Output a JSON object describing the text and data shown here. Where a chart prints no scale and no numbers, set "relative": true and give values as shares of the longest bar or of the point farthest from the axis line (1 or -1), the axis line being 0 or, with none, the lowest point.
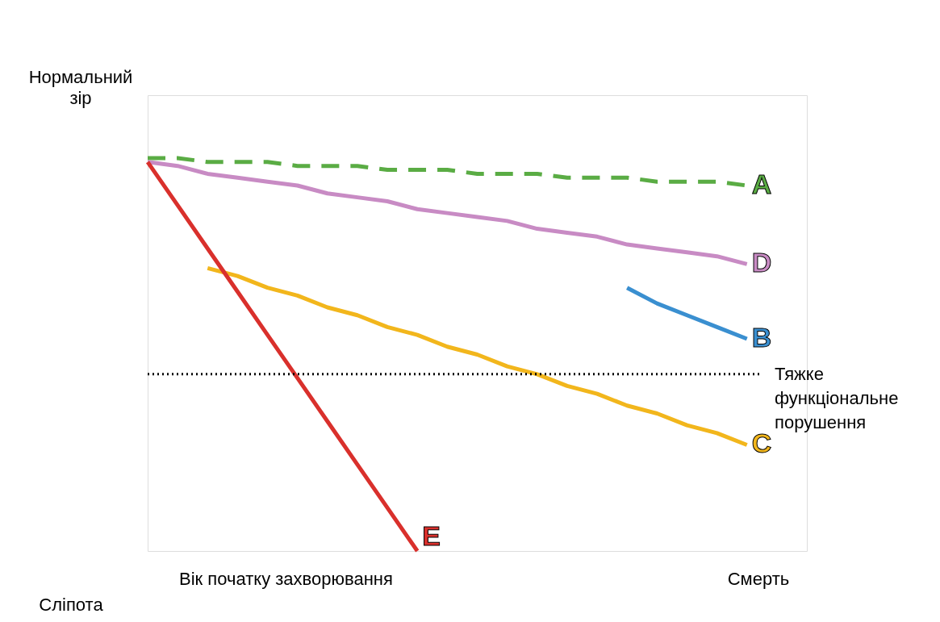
{
  "chart_data": {
    "type": "line",
    "relative": true,
    "grid": false,
    "marker": "none",
    "categories": [
      null,
      null,
      null,
      null,
      null,
      null,
      null,
      null,
      null,
      null,
      null,
      null,
      null,
      null,
      null,
      null,
      null,
      null,
      null,
      null,
      null
    ],
    "series": [
      {
        "name": "A",
        "color": "#5aac44",
        "line_style": "dashed",
        "values": [
          1.0,
          1.0,
          0.99,
          0.99,
          0.99,
          0.98,
          0.98,
          0.98,
          0.97,
          0.97,
          0.97,
          0.96,
          0.96,
          0.96,
          0.95,
          0.95,
          0.95,
          0.94,
          0.94,
          0.94,
          0.93
        ]
      },
      {
        "name": "D",
        "color": "#c88bc4",
        "values": [
          0.99,
          0.98,
          0.96,
          0.95,
          0.94,
          0.93,
          0.91,
          0.9,
          0.89,
          0.87,
          0.86,
          0.85,
          0.84,
          0.82,
          0.81,
          0.8,
          0.78,
          0.77,
          0.76,
          0.75,
          0.73
        ]
      },
      {
        "name": "B",
        "color": "#3a8fd0",
        "values": [
          null,
          null,
          null,
          null,
          null,
          null,
          null,
          null,
          null,
          null,
          null,
          null,
          null,
          null,
          null,
          null,
          0.67,
          0.63,
          0.6,
          0.57,
          0.54
        ]
      },
      {
        "name": "C",
        "color": "#f2b61c",
        "values": [
          null,
          null,
          0.72,
          0.7,
          0.67,
          0.65,
          0.62,
          0.6,
          0.57,
          0.55,
          0.52,
          0.5,
          0.47,
          0.45,
          0.42,
          0.4,
          0.37,
          0.35,
          0.32,
          0.3,
          0.27
        ]
      },
      {
        "name": "E",
        "color": "#d9302c",
        "values": [
          0.99,
          0.88,
          0.77,
          0.66,
          0.55,
          0.44,
          0.33,
          0.22,
          0.11,
          0,
          null,
          null,
          null,
          null,
          null,
          null,
          null,
          null,
          null,
          null,
          null
        ]
      }
    ],
    "ref_lines": [
      {
        "axis": "y",
        "value": 0.45,
        "label": "Тяжке функціональне порушення",
        "color": "#000000",
        "line_style": "dotted"
      }
    ],
    "annotations": [
      "Вік початку захворювання",
      "Смерть",
      "Нормальний зір",
      "Сліпота"
    ]
  }
}
